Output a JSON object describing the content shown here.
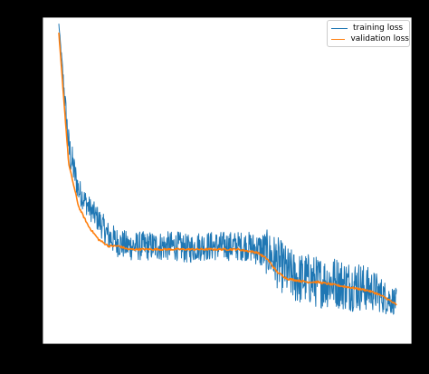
{
  "chart_data": {
    "type": "line",
    "title": "",
    "xlabel": "",
    "ylabel": "",
    "x_ticks_visible": false,
    "y_ticks_visible": false,
    "grid": false,
    "legend_position": "top-right",
    "series": [
      {
        "name": "training loss",
        "color": "#1f77b4",
        "noisy": true,
        "values": [
          0.98,
          0.6,
          0.47,
          0.42,
          0.38,
          0.33,
          0.31,
          0.3,
          0.3,
          0.3,
          0.3,
          0.3,
          0.3,
          0.29,
          0.3,
          0.3,
          0.3,
          0.3,
          0.3,
          0.3,
          0.29,
          0.28,
          0.25,
          0.22,
          0.2,
          0.2,
          0.19,
          0.19,
          0.19,
          0.18,
          0.18,
          0.17,
          0.16,
          0.14,
          0.13
        ],
        "noise_amplitude": [
          0.0,
          0.06,
          0.04,
          0.035,
          0.04,
          0.045,
          0.045,
          0.045,
          0.045,
          0.045,
          0.045,
          0.045,
          0.045,
          0.045,
          0.045,
          0.045,
          0.045,
          0.045,
          0.045,
          0.045,
          0.05,
          0.07,
          0.08,
          0.08,
          0.08,
          0.08,
          0.08,
          0.08,
          0.08,
          0.08,
          0.08,
          0.07,
          0.06,
          0.05,
          0.04
        ]
      },
      {
        "name": "validation loss",
        "color": "#ff7f0e",
        "noisy": false,
        "values": [
          0.95,
          0.55,
          0.42,
          0.36,
          0.32,
          0.3,
          0.3,
          0.29,
          0.29,
          0.29,
          0.29,
          0.29,
          0.29,
          0.29,
          0.29,
          0.29,
          0.29,
          0.29,
          0.29,
          0.285,
          0.28,
          0.26,
          0.22,
          0.2,
          0.195,
          0.19,
          0.19,
          0.185,
          0.18,
          0.175,
          0.17,
          0.165,
          0.155,
          0.14,
          0.12
        ]
      }
    ]
  },
  "legend": {
    "items": [
      {
        "label": "training loss",
        "color": "#1f77b4"
      },
      {
        "label": "validation loss",
        "color": "#ff7f0e"
      }
    ]
  }
}
